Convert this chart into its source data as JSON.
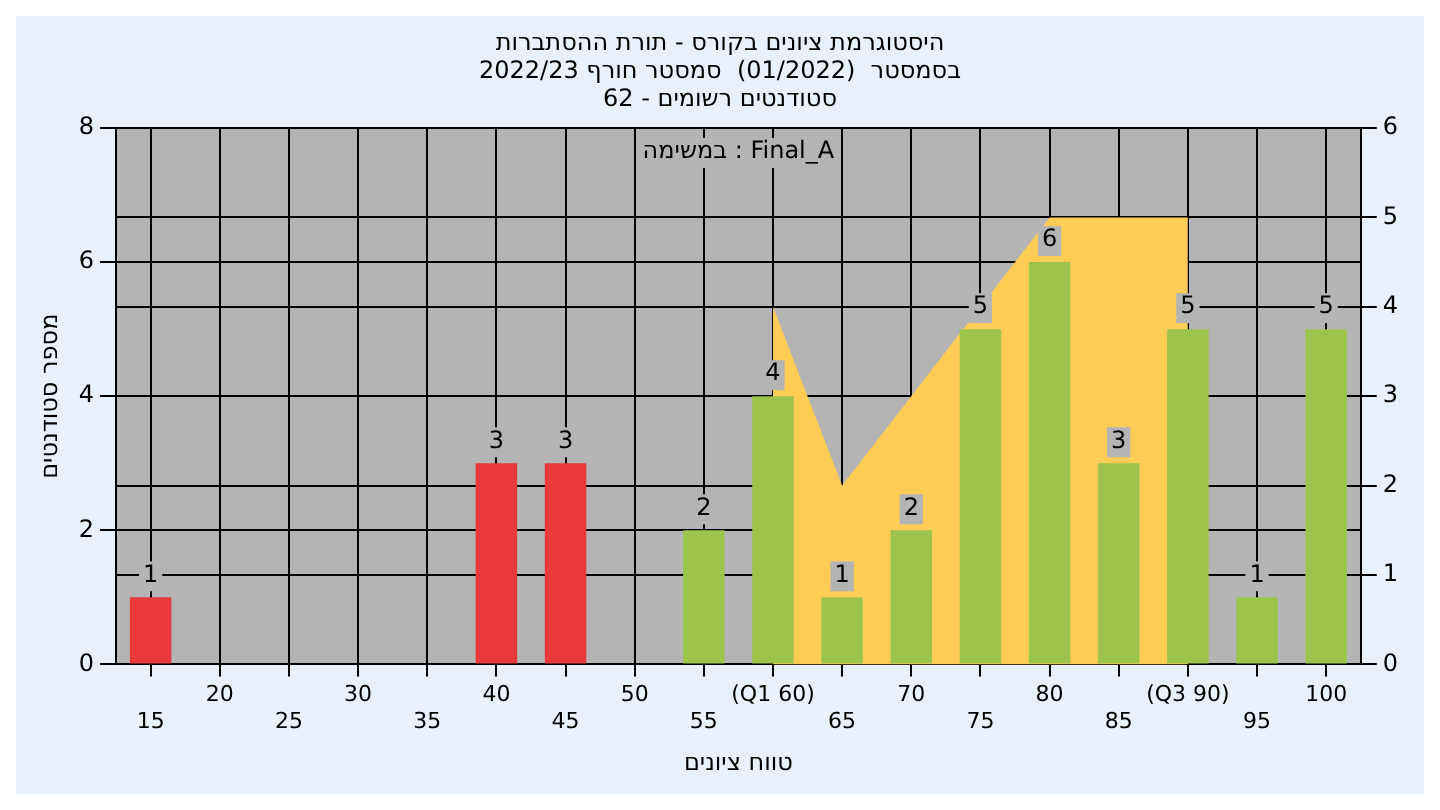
{
  "chart_data": {
    "type": "bar",
    "title": "היסטוגרמת ציונים בקורס - תורת ההסתברות",
    "subtitle": "בסמסטר  (01/2022)  סמסטר חורף 2022/23",
    "annotations": [
      "סטודנטים רשומים - 62",
      "במשימה : Final_A"
    ],
    "xlabel": "טווח ציונים",
    "ylabel": "מספר סטודנטים",
    "categories": [
      "15",
      "20",
      "25",
      "30",
      "35",
      "40",
      "45",
      "50",
      "55",
      "(Q1 60)",
      "65",
      "70",
      "75",
      "80",
      "85",
      "(Q3 90)",
      "95",
      "100"
    ],
    "series": [
      {
        "type": "area",
        "axis": "y2",
        "color": "#ffcc55",
        "values": [
          null,
          null,
          null,
          null,
          null,
          null,
          null,
          null,
          null,
          4,
          2,
          3,
          4,
          5,
          5,
          5,
          null,
          null
        ]
      },
      {
        "colors": [
          "#e83a3a",
          "#e83a3a",
          "#e83a3a",
          "#e83a3a",
          "#e83a3a",
          "#e83a3a",
          "#e83a3a",
          "#e83a3a",
          "#9cc44c",
          "#9cc44c",
          "#9cc44c",
          "#9cc44c",
          "#9cc44c",
          "#9cc44c",
          "#9cc44c",
          "#9cc44c",
          "#9cc44c",
          "#9cc44c"
        ],
        "values": [
          1,
          0,
          0,
          0,
          0,
          3,
          3,
          0,
          2,
          4,
          1,
          2,
          5,
          6,
          3,
          5,
          1,
          5
        ],
        "value_labels": [
          "1",
          null,
          null,
          null,
          null,
          "3",
          "3",
          null,
          "2",
          "4",
          "1",
          "2",
          "5",
          "6",
          "3",
          "5",
          "1",
          "5"
        ]
      }
    ],
    "ylim": [
      0,
      8
    ],
    "yticks": [
      0,
      2,
      4,
      6,
      8
    ],
    "y2lim": [
      0,
      6
    ],
    "y2ticks": [
      0,
      1,
      2,
      3,
      4,
      5,
      6
    ],
    "grid": true,
    "legend": false
  }
}
